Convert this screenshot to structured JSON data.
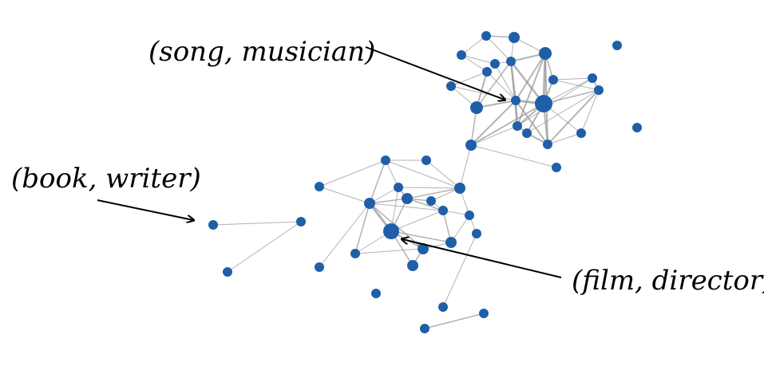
{
  "annotations": {
    "song_musician": "(song, musician)",
    "book_writer": "(book, writer)",
    "film_director": "(film, director)"
  },
  "colors": {
    "node": "#1f5fa8",
    "edge": "#9a9a9a",
    "arrow": "#000000",
    "text": "#000000"
  }
}
